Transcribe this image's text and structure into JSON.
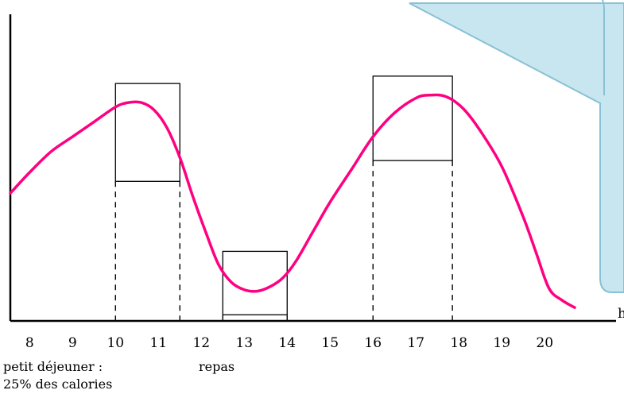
{
  "chart_data": {
    "type": "line",
    "title": "",
    "xlabel": "h",
    "ylabel": "",
    "xlim": [
      7.55,
      21.2
    ],
    "ylim": [
      0,
      1
    ],
    "grid": false,
    "x_ticks": [
      8,
      9,
      10,
      11,
      12,
      13,
      14,
      15,
      16,
      17,
      18,
      19,
      20
    ],
    "series": [
      {
        "color": "#ff0080",
        "x": [
          7.55,
          8.0,
          8.5,
          9.0,
          9.5,
          10.0,
          10.3,
          10.6,
          10.9,
          11.2,
          11.5,
          11.8,
          12.1,
          12.4,
          12.7,
          13.0,
          13.3,
          13.6,
          13.9,
          14.2,
          14.6,
          15.0,
          15.5,
          16.0,
          16.5,
          17.0,
          17.3,
          17.7,
          18.1,
          18.5,
          19.0,
          19.5,
          19.8,
          20.1,
          20.4,
          20.7
        ],
        "y": [
          0.43,
          0.5,
          0.57,
          0.62,
          0.67,
          0.72,
          0.735,
          0.735,
          0.71,
          0.65,
          0.55,
          0.42,
          0.3,
          0.19,
          0.13,
          0.105,
          0.1,
          0.115,
          0.145,
          0.2,
          0.3,
          0.4,
          0.51,
          0.62,
          0.7,
          0.75,
          0.76,
          0.755,
          0.715,
          0.64,
          0.52,
          0.35,
          0.23,
          0.11,
          0.07,
          0.045
        ]
      }
    ],
    "highlight_boxes": [
      {
        "x_range": [
          10.0,
          11.5
        ],
        "label_marks": [
          10,
          11.5
        ]
      },
      {
        "x_range": [
          12.5,
          14.0
        ],
        "label_marks": [
          12.5,
          14
        ]
      },
      {
        "x_range": [
          16.0,
          17.85
        ],
        "label_marks": [
          16,
          17.85
        ]
      }
    ],
    "annotations": {
      "breakfast_line1": "petit déjeuner :",
      "breakfast_line2": "25% des calories",
      "meal": "repas"
    }
  },
  "callout": {
    "fill": "#c8e6f0",
    "stroke": "#88c0d5"
  }
}
